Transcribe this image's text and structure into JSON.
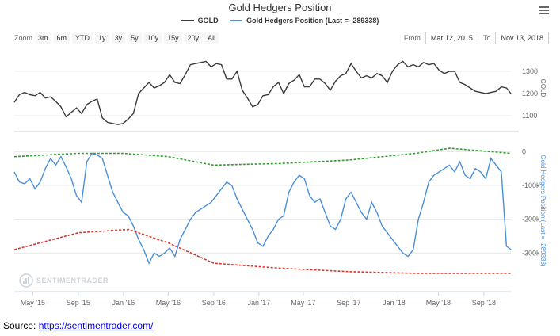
{
  "title": "Gold Hedgers Position",
  "legend": [
    {
      "label": "GOLD",
      "color": "#3a3a3a"
    },
    {
      "label": "Gold Hedgers Position (Last = -289338)",
      "color": "#4a8fd8"
    }
  ],
  "zoom": {
    "label": "Zoom",
    "buttons": [
      "3m",
      "6m",
      "YTD",
      "1y",
      "3y",
      "5y",
      "10y",
      "15y",
      "20y",
      "All"
    ]
  },
  "range": {
    "from_label": "From",
    "from": "Mar 12, 2015",
    "to_label": "To",
    "to": "Nov 13, 2018"
  },
  "watermark": "SENTIMENTRADER",
  "source": {
    "label": "Source:",
    "link": "https://sentimentrader.com/"
  },
  "chart_data": [
    {
      "type": "line",
      "ylabel": "GOLD",
      "yticks": [
        "1100",
        "1200",
        "1300"
      ],
      "ylim": [
        1050,
        1400
      ],
      "series": [
        {
          "name": "GOLD",
          "color": "#3a3a3a",
          "x": [
            "2015-03-12",
            "2015-03-26",
            "2015-04-09",
            "2015-04-23",
            "2015-05-07",
            "2015-05-21",
            "2015-06-04",
            "2015-06-18",
            "2015-07-02",
            "2015-07-16",
            "2015-07-30",
            "2015-08-13",
            "2015-08-27",
            "2015-09-10",
            "2015-09-24",
            "2015-10-08",
            "2015-10-22",
            "2015-11-05",
            "2015-11-19",
            "2015-12-03",
            "2015-12-17",
            "2015-12-31",
            "2016-01-14",
            "2016-01-28",
            "2016-02-11",
            "2016-02-25",
            "2016-03-10",
            "2016-03-24",
            "2016-04-07",
            "2016-04-21",
            "2016-05-05",
            "2016-05-19",
            "2016-06-02",
            "2016-06-16",
            "2016-06-30",
            "2016-07-14",
            "2016-07-28",
            "2016-08-11",
            "2016-08-25",
            "2016-09-08",
            "2016-09-22",
            "2016-10-06",
            "2016-10-20",
            "2016-11-03",
            "2016-11-17",
            "2016-12-01",
            "2016-12-15",
            "2016-12-29",
            "2017-01-12",
            "2017-01-26",
            "2017-02-09",
            "2017-02-23",
            "2017-03-09",
            "2017-03-23",
            "2017-04-06",
            "2017-04-20",
            "2017-05-04",
            "2017-05-18",
            "2017-06-01",
            "2017-06-15",
            "2017-06-29",
            "2017-07-13",
            "2017-07-27",
            "2017-08-10",
            "2017-08-24",
            "2017-09-07",
            "2017-09-21",
            "2017-10-05",
            "2017-10-19",
            "2017-11-02",
            "2017-11-16",
            "2017-11-30",
            "2017-12-14",
            "2017-12-28",
            "2018-01-11",
            "2018-01-25",
            "2018-02-08",
            "2018-02-22",
            "2018-03-08",
            "2018-03-22",
            "2018-04-05",
            "2018-04-19",
            "2018-05-03",
            "2018-05-17",
            "2018-05-31",
            "2018-06-14",
            "2018-06-28",
            "2018-07-12",
            "2018-07-26",
            "2018-08-09",
            "2018-08-23",
            "2018-09-06",
            "2018-09-20",
            "2018-10-04",
            "2018-10-18",
            "2018-11-01",
            "2018-11-13"
          ],
          "values": [
            1160,
            1195,
            1205,
            1195,
            1190,
            1205,
            1180,
            1185,
            1165,
            1140,
            1095,
            1115,
            1135,
            1110,
            1150,
            1165,
            1175,
            1090,
            1070,
            1065,
            1060,
            1065,
            1085,
            1110,
            1200,
            1225,
            1250,
            1225,
            1235,
            1250,
            1285,
            1250,
            1245,
            1285,
            1330,
            1335,
            1340,
            1345,
            1320,
            1335,
            1330,
            1265,
            1265,
            1300,
            1215,
            1180,
            1140,
            1150,
            1190,
            1195,
            1230,
            1250,
            1200,
            1245,
            1260,
            1285,
            1230,
            1230,
            1265,
            1265,
            1245,
            1215,
            1255,
            1280,
            1290,
            1335,
            1300,
            1270,
            1280,
            1270,
            1290,
            1280,
            1250,
            1300,
            1330,
            1345,
            1320,
            1330,
            1320,
            1340,
            1330,
            1335,
            1305,
            1290,
            1300,
            1300,
            1250,
            1240,
            1225,
            1210,
            1205,
            1200,
            1205,
            1210,
            1230,
            1225,
            1200
          ]
        }
      ]
    },
    {
      "type": "line",
      "ylabel": "Gold Hedgers Position (Last = -289338)",
      "yticks": [
        "-300k",
        "-200k",
        "-100k",
        "0"
      ],
      "ylim": [
        -400000,
        50000
      ],
      "series": [
        {
          "name": "Gold Hedgers Position (Last = -289338)",
          "color": "#4a8fd8",
          "x": [
            "2015-03-12",
            "2015-03-26",
            "2015-04-09",
            "2015-04-23",
            "2015-05-07",
            "2015-05-21",
            "2015-06-04",
            "2015-06-18",
            "2015-07-02",
            "2015-07-16",
            "2015-07-30",
            "2015-08-13",
            "2015-08-27",
            "2015-09-10",
            "2015-09-24",
            "2015-10-08",
            "2015-10-22",
            "2015-11-05",
            "2015-11-19",
            "2015-12-03",
            "2015-12-17",
            "2015-12-31",
            "2016-01-14",
            "2016-01-28",
            "2016-02-11",
            "2016-02-25",
            "2016-03-10",
            "2016-03-24",
            "2016-04-07",
            "2016-04-21",
            "2016-05-05",
            "2016-05-19",
            "2016-06-02",
            "2016-06-16",
            "2016-06-30",
            "2016-07-14",
            "2016-07-28",
            "2016-08-11",
            "2016-08-25",
            "2016-09-08",
            "2016-09-22",
            "2016-10-06",
            "2016-10-20",
            "2016-11-03",
            "2016-11-17",
            "2016-12-01",
            "2016-12-15",
            "2016-12-29",
            "2017-01-12",
            "2017-01-26",
            "2017-02-09",
            "2017-02-23",
            "2017-03-09",
            "2017-03-23",
            "2017-04-06",
            "2017-04-20",
            "2017-05-04",
            "2017-05-18",
            "2017-06-01",
            "2017-06-15",
            "2017-06-29",
            "2017-07-13",
            "2017-07-27",
            "2017-08-10",
            "2017-08-24",
            "2017-09-07",
            "2017-09-21",
            "2017-10-05",
            "2017-10-19",
            "2017-11-02",
            "2017-11-16",
            "2017-11-30",
            "2017-12-14",
            "2017-12-28",
            "2018-01-11",
            "2018-01-25",
            "2018-02-08",
            "2018-02-22",
            "2018-03-08",
            "2018-03-22",
            "2018-04-05",
            "2018-04-19",
            "2018-05-03",
            "2018-05-17",
            "2018-05-31",
            "2018-06-14",
            "2018-06-28",
            "2018-07-12",
            "2018-07-26",
            "2018-08-09",
            "2018-08-23",
            "2018-09-06",
            "2018-09-20",
            "2018-10-04",
            "2018-10-18",
            "2018-11-01",
            "2018-11-13"
          ],
          "values": [
            -60000,
            -90000,
            -95000,
            -80000,
            -110000,
            -90000,
            -50000,
            -20000,
            -40000,
            -15000,
            -45000,
            -80000,
            -130000,
            -150000,
            -30000,
            -5000,
            -10000,
            -20000,
            -70000,
            -120000,
            -150000,
            -180000,
            -190000,
            -220000,
            -260000,
            -290000,
            -330000,
            -300000,
            -310000,
            -300000,
            -285000,
            -310000,
            -260000,
            -230000,
            -200000,
            -180000,
            -170000,
            -160000,
            -150000,
            -130000,
            -110000,
            -90000,
            -100000,
            -140000,
            -170000,
            -200000,
            -230000,
            -270000,
            -280000,
            -250000,
            -230000,
            -200000,
            -190000,
            -120000,
            -90000,
            -70000,
            -80000,
            -130000,
            -150000,
            -140000,
            -180000,
            -220000,
            -230000,
            -200000,
            -140000,
            -120000,
            -150000,
            -180000,
            -200000,
            -150000,
            -180000,
            -220000,
            -240000,
            -260000,
            -280000,
            -300000,
            -310000,
            -290000,
            -200000,
            -150000,
            -90000,
            -70000,
            -60000,
            -50000,
            -40000,
            -60000,
            -30000,
            -70000,
            -80000,
            -50000,
            -60000,
            -80000,
            -20000,
            -40000,
            -60000,
            -280000,
            -289338
          ]
        },
        {
          "name": "",
          "color": "#e0342b",
          "x": [
            "2015-03-12",
            "2015-09-01",
            "2016-01-15",
            "2016-05-01",
            "2016-09-01",
            "2017-03-01",
            "2017-09-01",
            "2018-03-01",
            "2018-11-13"
          ],
          "values": [
            -290000,
            -240000,
            -230000,
            -270000,
            -330000,
            -345000,
            -355000,
            -360000,
            -360000
          ]
        },
        {
          "name": "",
          "color": "#2e9e2e",
          "x": [
            "2015-03-12",
            "2015-09-01",
            "2016-01-01",
            "2016-05-01",
            "2016-09-01",
            "2017-03-01",
            "2017-09-01",
            "2018-03-01",
            "2018-06-01",
            "2018-11-13"
          ],
          "values": [
            -15000,
            -5000,
            -5000,
            -15000,
            -40000,
            -35000,
            -25000,
            -5000,
            10000,
            -5000
          ]
        }
      ]
    }
  ],
  "x_axis": {
    "labels": [
      "May '15",
      "Sep '15",
      "Jan '16",
      "May '16",
      "Sep '16",
      "Jan '17",
      "May '17",
      "Sep '17",
      "Jan '18",
      "May '18",
      "Sep '18"
    ]
  }
}
